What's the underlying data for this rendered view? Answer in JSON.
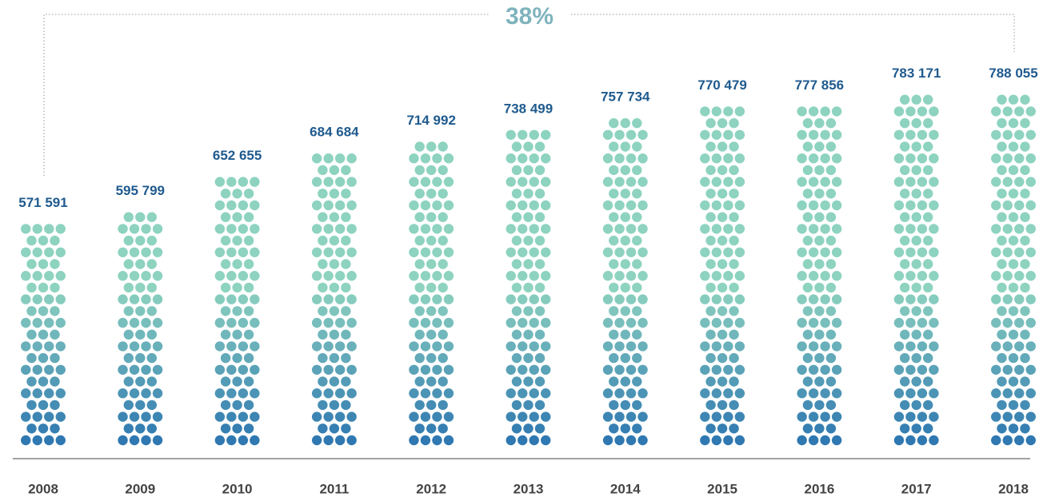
{
  "chart_data": {
    "type": "dot-column",
    "annotation": "38%",
    "categories": [
      "2008",
      "2009",
      "2010",
      "2011",
      "2012",
      "2013",
      "2014",
      "2015",
      "2016",
      "2017",
      "2018"
    ],
    "values": [
      571591,
      595799,
      652655,
      684684,
      714992,
      738499,
      757734,
      770479,
      777856,
      783171,
      788055
    ],
    "value_labels": [
      "571 591",
      "595 799",
      "652 655",
      "684 684",
      "714 992",
      "738 499",
      "757 734",
      "770 479",
      "777 856",
      "783 171",
      "788 055"
    ],
    "color_bottom": "#2f78b1",
    "color_top": "#8dd3bf"
  }
}
